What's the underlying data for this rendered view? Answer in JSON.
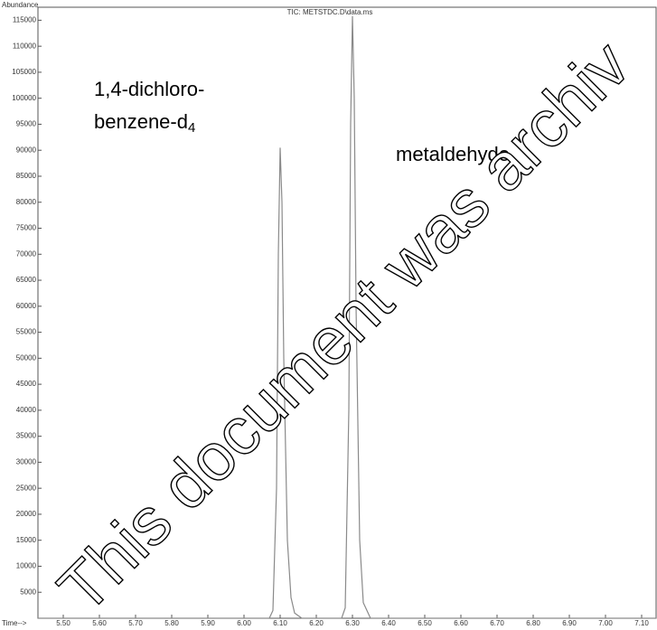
{
  "chart_data": {
    "type": "line",
    "title": "TIC: METSTDC.D\\data.ms",
    "y_label": "Abundance",
    "x_label": "Time-->",
    "watermark": "This document was archiv",
    "annotations": [
      {
        "text": "1,4-dichloro-"
      },
      {
        "text": "benzene-d",
        "subscript": "4"
      },
      {
        "text": "metaldehyde"
      }
    ],
    "x": [
      5.43,
      6.07,
      6.08,
      6.09,
      6.095,
      6.1,
      6.105,
      6.11,
      6.12,
      6.13,
      6.14,
      6.16,
      6.27,
      6.28,
      6.29,
      6.295,
      6.3,
      6.305,
      6.31,
      6.32,
      6.33,
      6.35,
      7.14
    ],
    "series": [
      {
        "color": "#8a8a8a",
        "values": [
          0,
          0,
          1500,
          25000,
          70000,
          90500,
          80000,
          50000,
          15000,
          4000,
          1000,
          0,
          0,
          2000,
          40000,
          95000,
          115800,
          100000,
          60000,
          15000,
          3000,
          0,
          0
        ]
      }
    ],
    "xlim": [
      5.43,
      7.14
    ],
    "ylim": [
      0,
      117500
    ],
    "xticks": [
      {
        "value": 5.5,
        "label": "5.50"
      },
      {
        "value": 5.6,
        "label": "5.60"
      },
      {
        "value": 5.7,
        "label": "5.70"
      },
      {
        "value": 5.8,
        "label": "5.80"
      },
      {
        "value": 5.9,
        "label": "5.90"
      },
      {
        "value": 6.0,
        "label": "6.00"
      },
      {
        "value": 6.1,
        "label": "6.10"
      },
      {
        "value": 6.2,
        "label": "6.20"
      },
      {
        "value": 6.3,
        "label": "6.30"
      },
      {
        "value": 6.4,
        "label": "6.40"
      },
      {
        "value": 6.5,
        "label": "6.50"
      },
      {
        "value": 6.6,
        "label": "6.60"
      },
      {
        "value": 6.7,
        "label": "6.70"
      },
      {
        "value": 6.8,
        "label": "6.80"
      },
      {
        "value": 6.9,
        "label": "6.90"
      },
      {
        "value": 7.0,
        "label": "7.00"
      },
      {
        "value": 7.1,
        "label": "7.10"
      }
    ],
    "yticks": [
      5000,
      10000,
      15000,
      20000,
      25000,
      30000,
      35000,
      40000,
      45000,
      50000,
      55000,
      60000,
      65000,
      70000,
      75000,
      80000,
      85000,
      90000,
      95000,
      100000,
      105000,
      110000,
      115000
    ]
  }
}
